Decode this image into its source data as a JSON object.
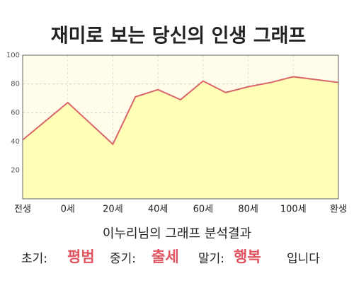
{
  "chart_data": {
    "type": "area",
    "title": "재미로 보는 당신의 인생 그래프",
    "x": [
      -20,
      0,
      20,
      30,
      40,
      50,
      60,
      70,
      80,
      90,
      100,
      120
    ],
    "values": [
      41,
      67,
      38,
      71,
      76,
      69,
      82,
      74,
      78,
      81,
      85,
      81
    ],
    "color": "#d9646a",
    "fill": "#ffffb5",
    "xlim": [
      -20,
      120
    ],
    "xticks": [
      {
        "value": -20,
        "label": "전생"
      },
      {
        "value": 0,
        "label": "0세"
      },
      {
        "value": 20,
        "label": "20세"
      },
      {
        "value": 40,
        "label": "40세"
      },
      {
        "value": 60,
        "label": "60세"
      },
      {
        "value": 80,
        "label": "80세"
      },
      {
        "value": 100,
        "label": "100세"
      },
      {
        "value": 120,
        "label": "환생"
      }
    ],
    "ylim": [
      0,
      100
    ],
    "yticks": [
      20,
      40,
      60,
      80,
      100
    ],
    "grid": true
  },
  "summary": {
    "heading": "이누리님의 그래프 분석결과",
    "early_label": "초기:",
    "early": "평범",
    "middle_label": "중기:",
    "middle": "출세",
    "late_label": "말기:",
    "late": "행복",
    "ending": "입니다"
  }
}
